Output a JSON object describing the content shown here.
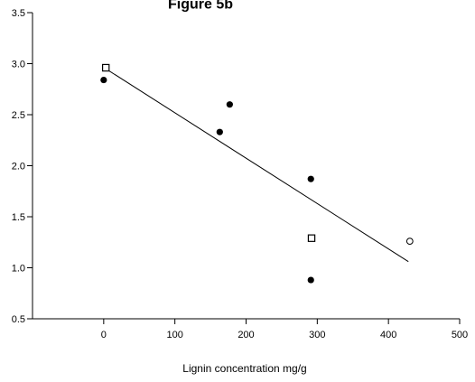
{
  "chart_data": {
    "type": "scatter",
    "title": "Figure 5b",
    "xlabel": "Lignin concentration mg/g",
    "ylabel": "",
    "xlim": [
      -100,
      500
    ],
    "ylim": [
      0.5,
      3.5
    ],
    "xticks": [
      0,
      100,
      200,
      300,
      400,
      500
    ],
    "yticks": [
      0.5,
      1.0,
      1.5,
      2.0,
      2.5,
      3.0,
      3.5
    ],
    "xtick_labels": [
      "0",
      "100",
      "200",
      "300",
      "400",
      "500"
    ],
    "ytick_labels": [
      "0.5",
      "1.0",
      "1.5",
      "2.0",
      "2.5",
      "3.0",
      "3.5"
    ],
    "grid": false,
    "series": [
      {
        "marker": "filled-circle",
        "color": "#000000",
        "points": [
          {
            "x": 0,
            "y": 2.84
          },
          {
            "x": 163,
            "y": 2.33
          },
          {
            "x": 177,
            "y": 2.6
          },
          {
            "x": 291,
            "y": 1.87
          },
          {
            "x": 291,
            "y": 0.88
          }
        ]
      },
      {
        "marker": "open-square",
        "color": "#000000",
        "points": [
          {
            "x": 3,
            "y": 2.96
          },
          {
            "x": 292,
            "y": 1.29
          }
        ]
      },
      {
        "marker": "open-circle",
        "color": "#000000",
        "points": [
          {
            "x": 430,
            "y": 1.26
          }
        ]
      }
    ],
    "fit_line": {
      "x": [
        3,
        428
      ],
      "y": [
        2.95,
        1.06
      ]
    }
  }
}
